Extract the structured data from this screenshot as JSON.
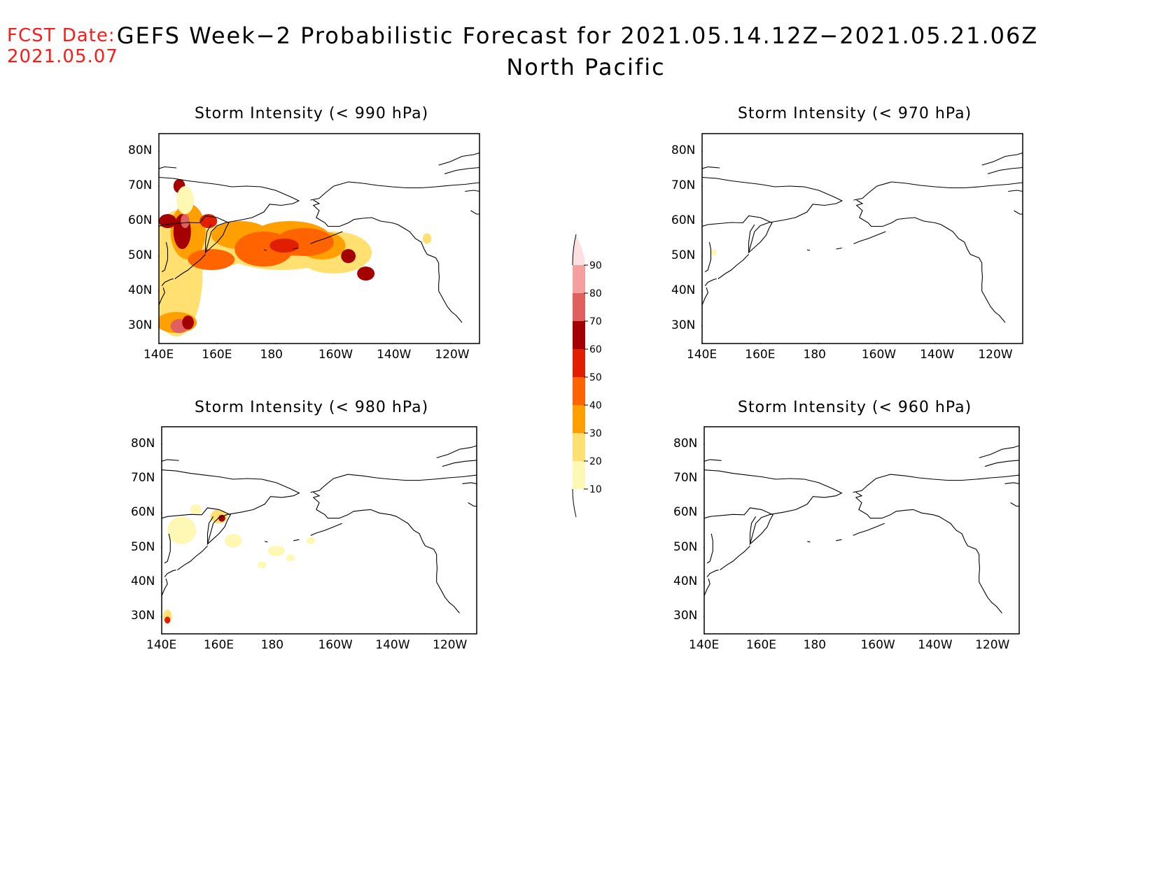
{
  "header": {
    "fcst_label": "FCST Date:",
    "fcst_date": "2021.05.07",
    "title": "GEFS Week−2 Probabilistic Forecast for 2021.05.14.12Z−2021.05.21.06Z",
    "subtitle": "North Pacific"
  },
  "panels": [
    {
      "id": "p990",
      "title": "Storm Intensity (< 990 hPa)",
      "intensity": "high"
    },
    {
      "id": "p970",
      "title": "Storm Intensity (< 970 hPa)",
      "intensity": "none"
    },
    {
      "id": "p980",
      "title": "Storm Intensity (< 980 hPa)",
      "intensity": "low"
    },
    {
      "id": "p960",
      "title": "Storm Intensity (< 960 hPa)",
      "intensity": "none"
    }
  ],
  "axes": {
    "lat_labels": [
      "80N",
      "70N",
      "60N",
      "50N",
      "40N",
      "30N"
    ],
    "lon_labels": [
      "140E",
      "160E",
      "180",
      "160W",
      "140W",
      "120W"
    ],
    "lat_range": [
      25,
      85
    ],
    "lon_range": [
      140,
      250
    ]
  },
  "colorbar": {
    "levels": [
      "90",
      "80",
      "70",
      "60",
      "50",
      "40",
      "30",
      "20",
      "10"
    ],
    "colors": [
      "#fde0e0",
      "#f4a0a0",
      "#e06060",
      "#a50000",
      "#e01e00",
      "#ff6400",
      "#ff9f00",
      "#ffe070",
      "#fff8b4"
    ]
  }
}
